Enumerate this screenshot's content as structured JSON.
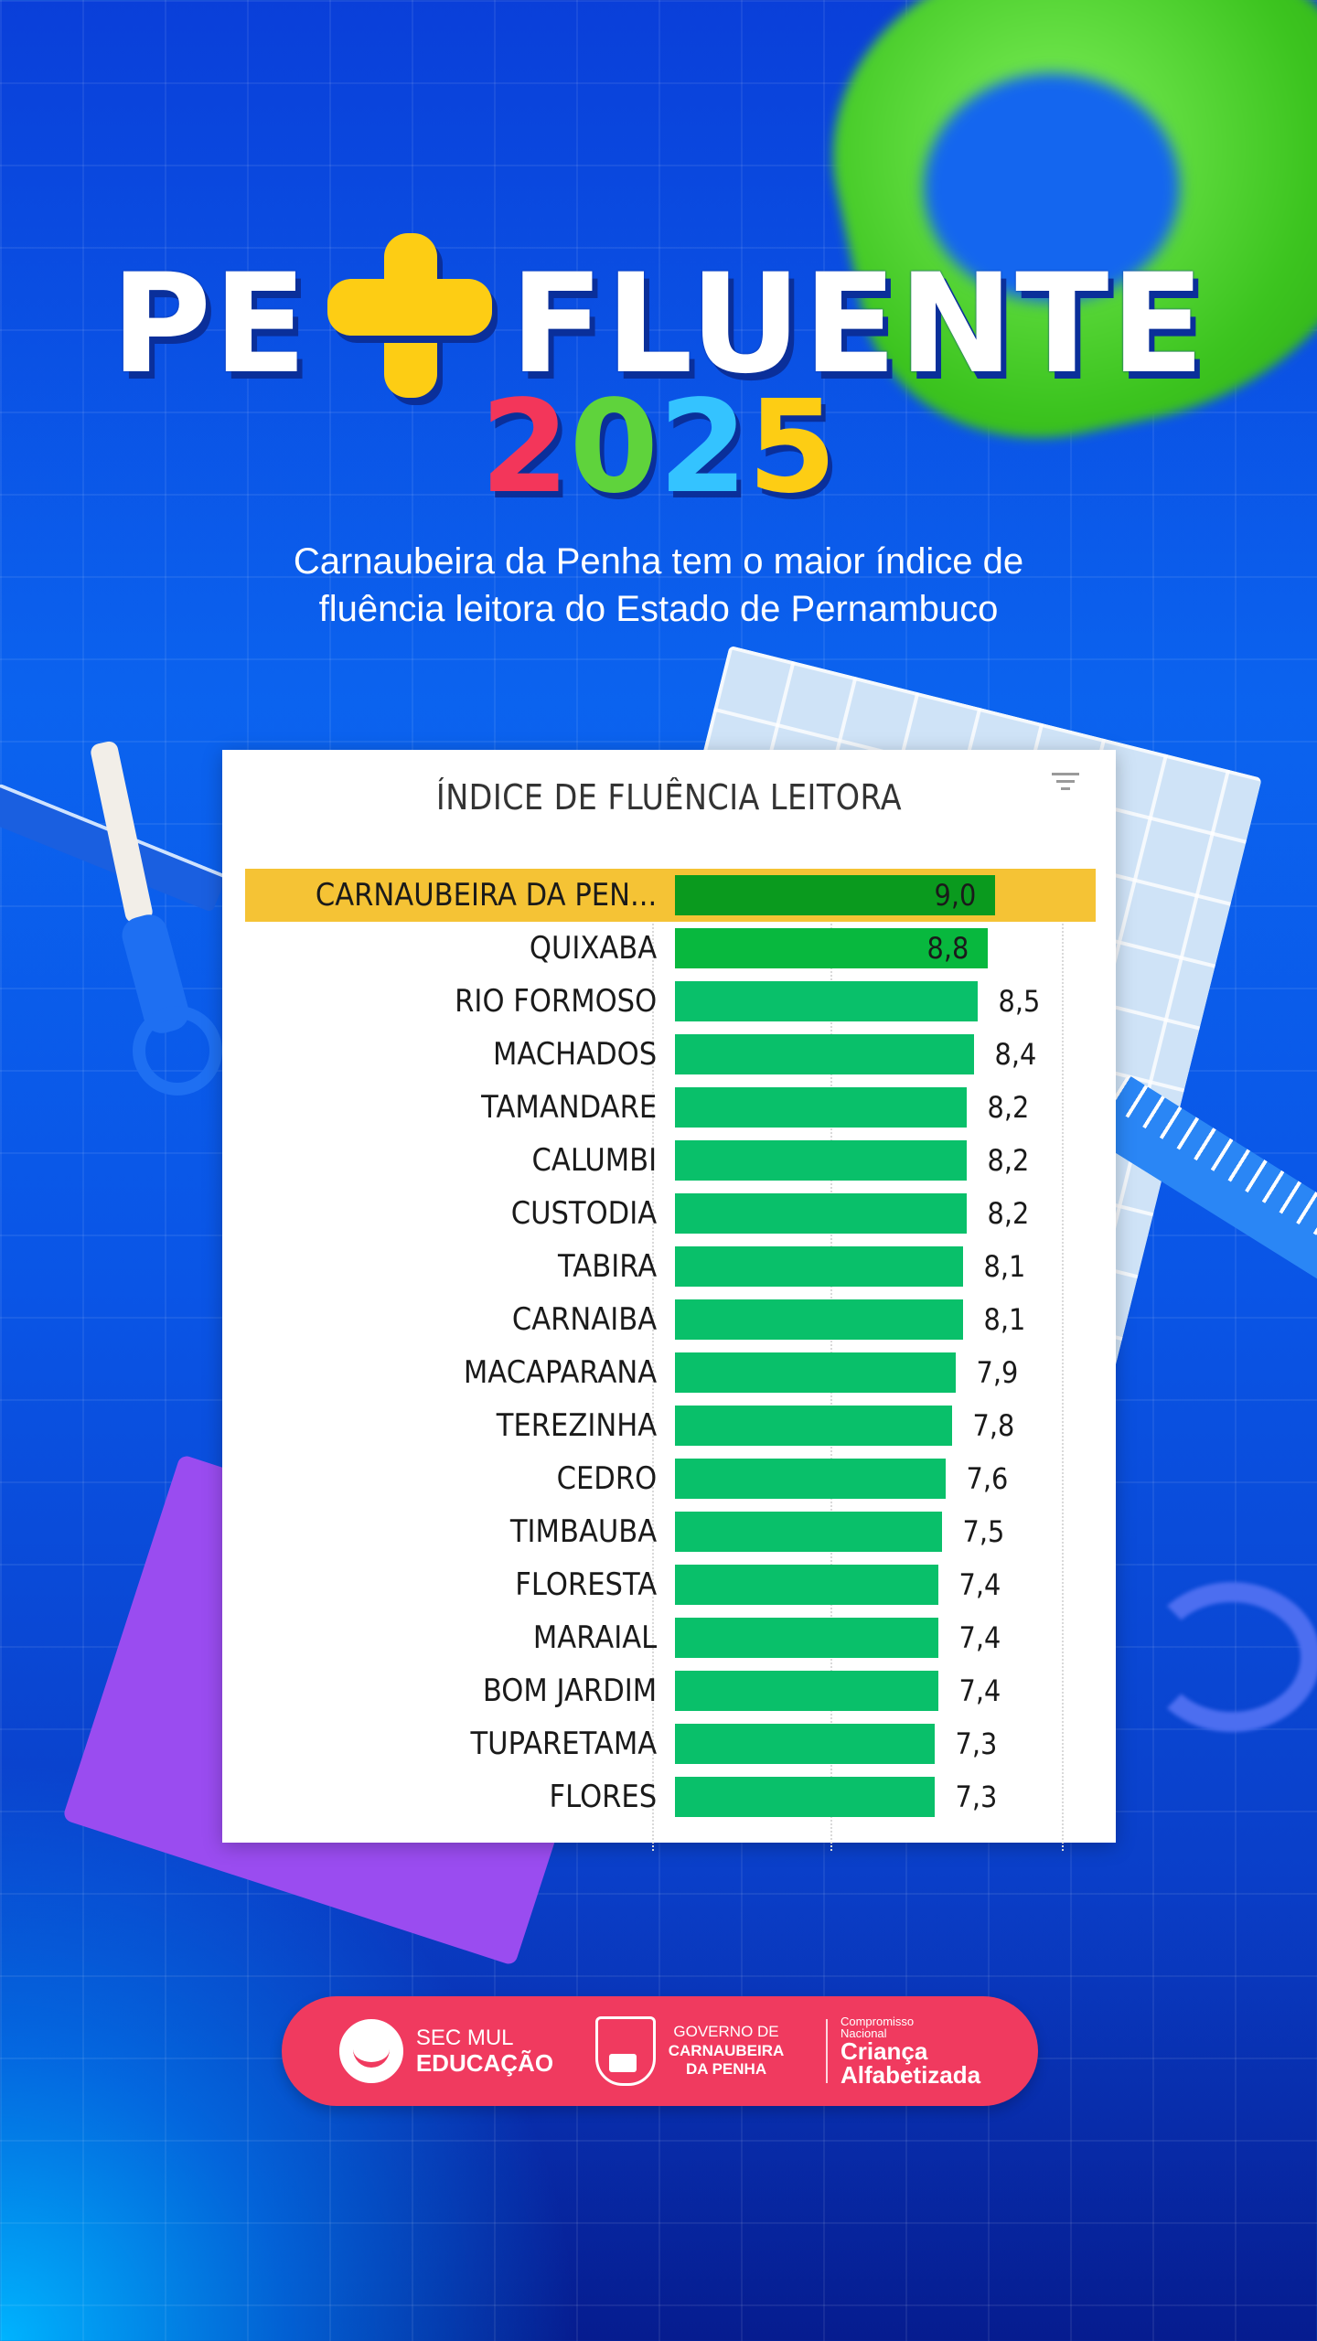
{
  "header": {
    "title_left": "PE",
    "title_plus_icon": "plus-icon",
    "title_right": "FLUENTE",
    "year_digits": [
      {
        "char": "2",
        "color": "#f3365a"
      },
      {
        "char": "0",
        "color": "#5fd33c"
      },
      {
        "char": "2",
        "color": "#34c3ff"
      },
      {
        "char": "5",
        "color": "#fdcd14"
      }
    ],
    "subtitle_line1": "Carnaubeira da Penha tem o maior índice de",
    "subtitle_line2": "fluência leitora do Estado de Pernambuco"
  },
  "chart": {
    "title": "ÍNDICE DE FLUÊNCIA LEITORA",
    "filter_icon": "filter-icon",
    "bar_color": "#09c06a",
    "highlight_bar_color": "#0a9a1e",
    "highlight_row_color": "#f5c335"
  },
  "chart_data": {
    "type": "bar",
    "orientation": "horizontal",
    "title": "ÍNDICE DE FLUÊNCIA LEITORA",
    "xlabel": "",
    "ylabel": "",
    "grid": true,
    "highlighted_category": "CARNAUBEIRA DA PEN...",
    "categories": [
      "CARNAUBEIRA DA PEN...",
      "QUIXABA",
      "RIO FORMOSO",
      "MACHADOS",
      "TAMANDARE",
      "CALUMBI",
      "CUSTODIA",
      "TABIRA",
      "CARNAIBA",
      "MACAPARANA",
      "TEREZINHA",
      "CEDRO",
      "TIMBAUBA",
      "FLORESTA",
      "MARAIAL",
      "BOM JARDIM",
      "TUPARETAMA",
      "FLORES"
    ],
    "values": [
      9.0,
      8.8,
      8.5,
      8.4,
      8.2,
      8.2,
      8.2,
      8.1,
      8.1,
      7.9,
      7.8,
      7.6,
      7.5,
      7.4,
      7.4,
      7.4,
      7.3,
      7.3
    ],
    "value_labels": [
      "9,0",
      "8,8",
      "8,5",
      "8,4",
      "8,2",
      "8,2",
      "8,2",
      "8,1",
      "8,1",
      "7,9",
      "7,8",
      "7,6",
      "7,5",
      "7,4",
      "7,4",
      "7,4",
      "7,3",
      "7,3"
    ],
    "xlim": [
      0,
      9.0
    ]
  },
  "footer": {
    "logo1": {
      "icon": "sec-mul-emblem-icon",
      "line1": "SEC MUL",
      "line2": "EDUCAÇÃO"
    },
    "logo2": {
      "icon": "municipal-crest-icon",
      "line1": "GOVERNO DE",
      "line2": "CARNAUBEIRA",
      "line3": "DA PENHA"
    },
    "logo3": {
      "line1": "Compromisso",
      "line2": "Nacional",
      "line3": "Criança",
      "line4": "Alfabetizada"
    }
  }
}
